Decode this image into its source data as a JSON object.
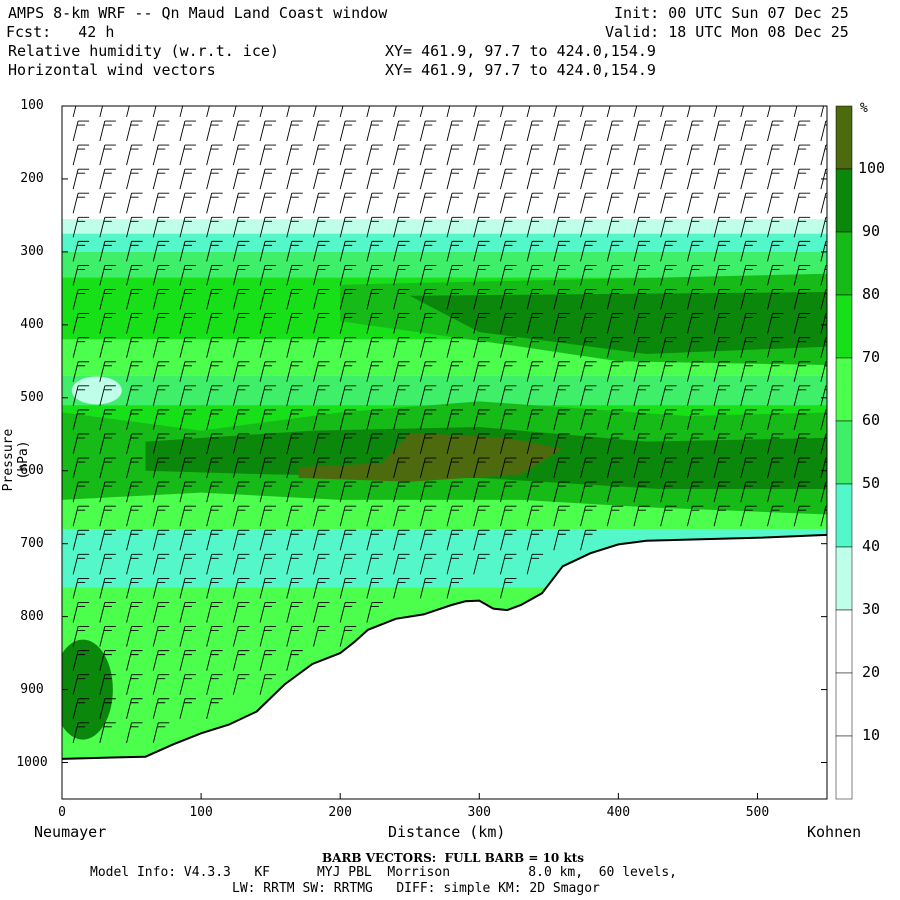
{
  "header": {
    "title_line": "AMPS 8-km WRF -- Qn Maud Land Coast window",
    "init_line": "Init: 00 UTC Sun 07 Dec 25",
    "fcst_line": "Fcst:   42 h",
    "valid_line": "Valid: 18 UTC Mon 08 Dec 25",
    "field1_line": "Relative humidity (w.r.t. ice)",
    "field1_xy": "XY= 461.9, 97.7 to 424.0,154.9",
    "field2_line": "Horizontal wind vectors",
    "field2_xy": "XY= 461.9, 97.7 to 424.0,154.9"
  },
  "footer": {
    "barb_line": "BARB VECTORS:  FULL BARB = 10 kts",
    "model_line": "Model Info: V4.3.3   KF      MYJ PBL  Morrison          8.0 km,  60 levels,",
    "physics_line": "LW: RRTM SW: RRTMG   DIFF: simple KM: 2D Smagor"
  },
  "colors": {
    "c_lt30": "#ffffff",
    "c_30_40": "#bfffe9",
    "c_40_50": "#54f7c9",
    "c_50_60": "#3fef6a",
    "c_60_70": "#4cff4c",
    "c_70_80": "#18e018",
    "c_80_90": "#17bb17",
    "c_90_100": "#0b880b",
    "c_gt100": "#4e6a0e"
  },
  "chart_data": {
    "type": "cross-section",
    "title": "Relative humidity (w.r.t. ice)",
    "xlabel": "Distance (km)",
    "ylabel": "Pressure (hPa)",
    "xlim": [
      0,
      550
    ],
    "ylim": [
      1050,
      100
    ],
    "xticks": [
      "0",
      "100",
      "200",
      "300",
      "400",
      "500"
    ],
    "yticks": [
      "100",
      "200",
      "300",
      "400",
      "500",
      "600",
      "700",
      "800",
      "900",
      "1000"
    ],
    "x_endpoints": {
      "left": "Neumayer",
      "right": "Kohnen"
    },
    "colorbar": {
      "unit": "%",
      "levels": [
        "10",
        "20",
        "30",
        "40",
        "50",
        "60",
        "70",
        "80",
        "90",
        "100"
      ]
    },
    "terrain_profile_hpa": [
      [
        0,
        995
      ],
      [
        20,
        994
      ],
      [
        40,
        993
      ],
      [
        60,
        992
      ],
      [
        80,
        975
      ],
      [
        100,
        960
      ],
      [
        120,
        948
      ],
      [
        140,
        930
      ],
      [
        160,
        893
      ],
      [
        180,
        865
      ],
      [
        200,
        850
      ],
      [
        210,
        835
      ],
      [
        220,
        818
      ],
      [
        240,
        803
      ],
      [
        260,
        797
      ],
      [
        280,
        784
      ],
      [
        290,
        779
      ],
      [
        300,
        778
      ],
      [
        310,
        789
      ],
      [
        320,
        791
      ],
      [
        330,
        784
      ],
      [
        345,
        768
      ],
      [
        360,
        731
      ],
      [
        380,
        713
      ],
      [
        400,
        701
      ],
      [
        420,
        696
      ],
      [
        460,
        694
      ],
      [
        500,
        692
      ],
      [
        550,
        688
      ]
    ],
    "barbs_full_value_kts": 10
  }
}
